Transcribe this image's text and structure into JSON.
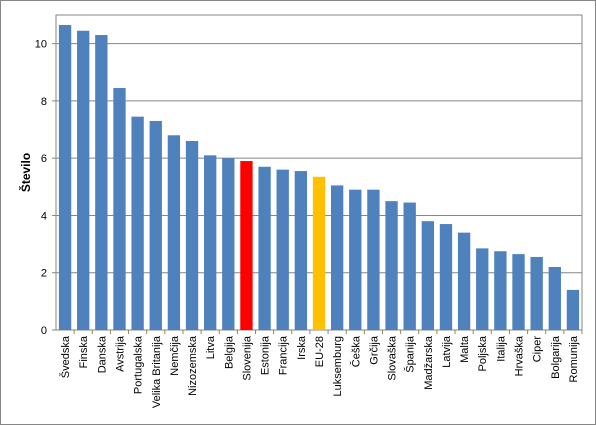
{
  "chart_data": {
    "type": "bar",
    "ylabel": "Število",
    "xlabel": "",
    "ylim": [
      0,
      11
    ],
    "yticks": [
      0,
      2,
      4,
      6,
      8,
      10
    ],
    "grid": "horizontal",
    "legend": "none",
    "colors": {
      "default": "#4F81BD",
      "highlight_slovenia": "#FF0000",
      "highlight_eu": "#FFC000",
      "grid": "#868686"
    },
    "categories": [
      "Švedska",
      "Finska",
      "Danska",
      "Avstrija",
      "Portugalska",
      "Velika Britanija",
      "Nemčija",
      "Nizozemska",
      "Litva",
      "Belgija",
      "Slovenija",
      "Estonija",
      "Francija",
      "Irska",
      "EU-28",
      "Luksemburg",
      "Češka",
      "Grčija",
      "Slovaška",
      "Španija",
      "Madžarska",
      "Latvija",
      "Malta",
      "Poljska",
      "Italija",
      "Hrvaška",
      "Ciper",
      "Bolgarija",
      "Romunija"
    ],
    "values": [
      10.65,
      10.45,
      10.3,
      8.45,
      7.45,
      7.3,
      6.8,
      6.6,
      6.1,
      6.0,
      5.9,
      5.7,
      5.6,
      5.55,
      5.35,
      5.05,
      4.9,
      4.9,
      4.5,
      4.45,
      3.8,
      3.7,
      3.4,
      2.85,
      2.75,
      2.65,
      2.55,
      2.2,
      1.4
    ],
    "highlight": {
      "Slovenija": "#FF0000",
      "EU-28": "#FFC000"
    }
  }
}
